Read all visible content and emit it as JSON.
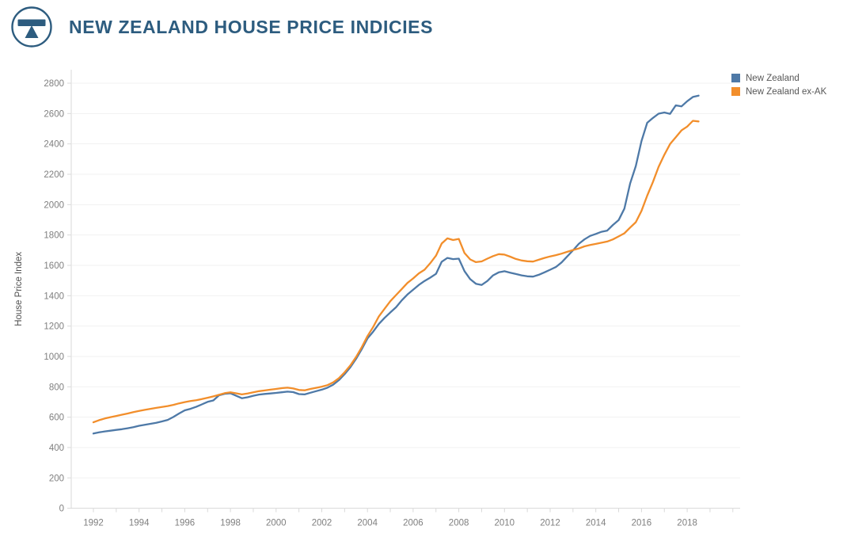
{
  "header": {
    "title": "NEW ZEALAND HOUSE PRICE INDICIES",
    "logo_icon": "balance-scale-logo"
  },
  "colors": {
    "brand": "#2d5c7f",
    "series_new_zealand": "#4e79a7",
    "series_new_zealand_ex_ak": "#f28e2b",
    "axis_line": "#d9d9d9",
    "gridline": "#f1f1f1",
    "tick_label": "#7f7f7f",
    "axis_title": "#4f4f4f",
    "legend_text": "#575757"
  },
  "chart_data": {
    "type": "line",
    "title": "NEW ZEALAND HOUSE PRICE INDICIES",
    "xlabel": "",
    "ylabel": "House Price Index",
    "ylim": [
      0,
      2800
    ],
    "ytick_step": 200,
    "xlim": [
      1991,
      2020.3
    ],
    "xticks": [
      1992,
      1994,
      1996,
      1998,
      2000,
      2002,
      2004,
      2006,
      2008,
      2010,
      2012,
      2014,
      2016,
      2018
    ],
    "x_minor_tick_step": 1,
    "grid": "horizontal",
    "legend_position": "top-right",
    "x_start": 1992.0,
    "x_step": 0.25,
    "x_unit": "decimal_year",
    "series": [
      {
        "name": "New Zealand",
        "color": "#4e79a7",
        "values": [
          492,
          500,
          506,
          511,
          516,
          521,
          527,
          534,
          543,
          550,
          556,
          563,
          572,
          582,
          601,
          624,
          645,
          655,
          668,
          684,
          701,
          710,
          744,
          754,
          757,
          741,
          725,
          731,
          741,
          749,
          753,
          756,
          760,
          764,
          768,
          765,
          752,
          750,
          761,
          771,
          781,
          794,
          814,
          844,
          884,
          929,
          984,
          1048,
          1118,
          1163,
          1214,
          1254,
          1290,
          1324,
          1369,
          1408,
          1439,
          1471,
          1497,
          1519,
          1544,
          1624,
          1649,
          1641,
          1644,
          1562,
          1509,
          1479,
          1471,
          1497,
          1534,
          1554,
          1561,
          1552,
          1543,
          1534,
          1528,
          1526,
          1538,
          1554,
          1571,
          1589,
          1619,
          1659,
          1699,
          1741,
          1771,
          1794,
          1807,
          1821,
          1829,
          1866,
          1899,
          1974,
          2139,
          2254,
          2419,
          2539,
          2571,
          2599,
          2607,
          2598,
          2654,
          2647,
          2681,
          2709,
          2718
        ]
      },
      {
        "name": "New Zealand ex-AK",
        "color": "#f28e2b",
        "values": [
          566,
          580,
          591,
          600,
          608,
          616,
          624,
          633,
          641,
          648,
          655,
          661,
          667,
          673,
          681,
          691,
          699,
          706,
          712,
          719,
          728,
          737,
          747,
          758,
          764,
          757,
          750,
          756,
          764,
          771,
          776,
          781,
          786,
          791,
          794,
          789,
          779,
          777,
          786,
          793,
          801,
          811,
          829,
          857,
          896,
          941,
          996,
          1061,
          1134,
          1194,
          1264,
          1314,
          1364,
          1404,
          1444,
          1484,
          1514,
          1547,
          1571,
          1614,
          1664,
          1744,
          1778,
          1767,
          1774,
          1681,
          1639,
          1621,
          1626,
          1644,
          1661,
          1674,
          1671,
          1657,
          1642,
          1632,
          1627,
          1625,
          1637,
          1649,
          1659,
          1667,
          1677,
          1689,
          1701,
          1711,
          1725,
          1734,
          1741,
          1749,
          1757,
          1771,
          1791,
          1811,
          1849,
          1884,
          1959,
          2059,
          2149,
          2249,
          2329,
          2399,
          2444,
          2489,
          2514,
          2552,
          2548
        ]
      }
    ]
  },
  "legend": {
    "items": [
      {
        "label": "New Zealand"
      },
      {
        "label": "New Zealand ex-AK"
      }
    ]
  }
}
